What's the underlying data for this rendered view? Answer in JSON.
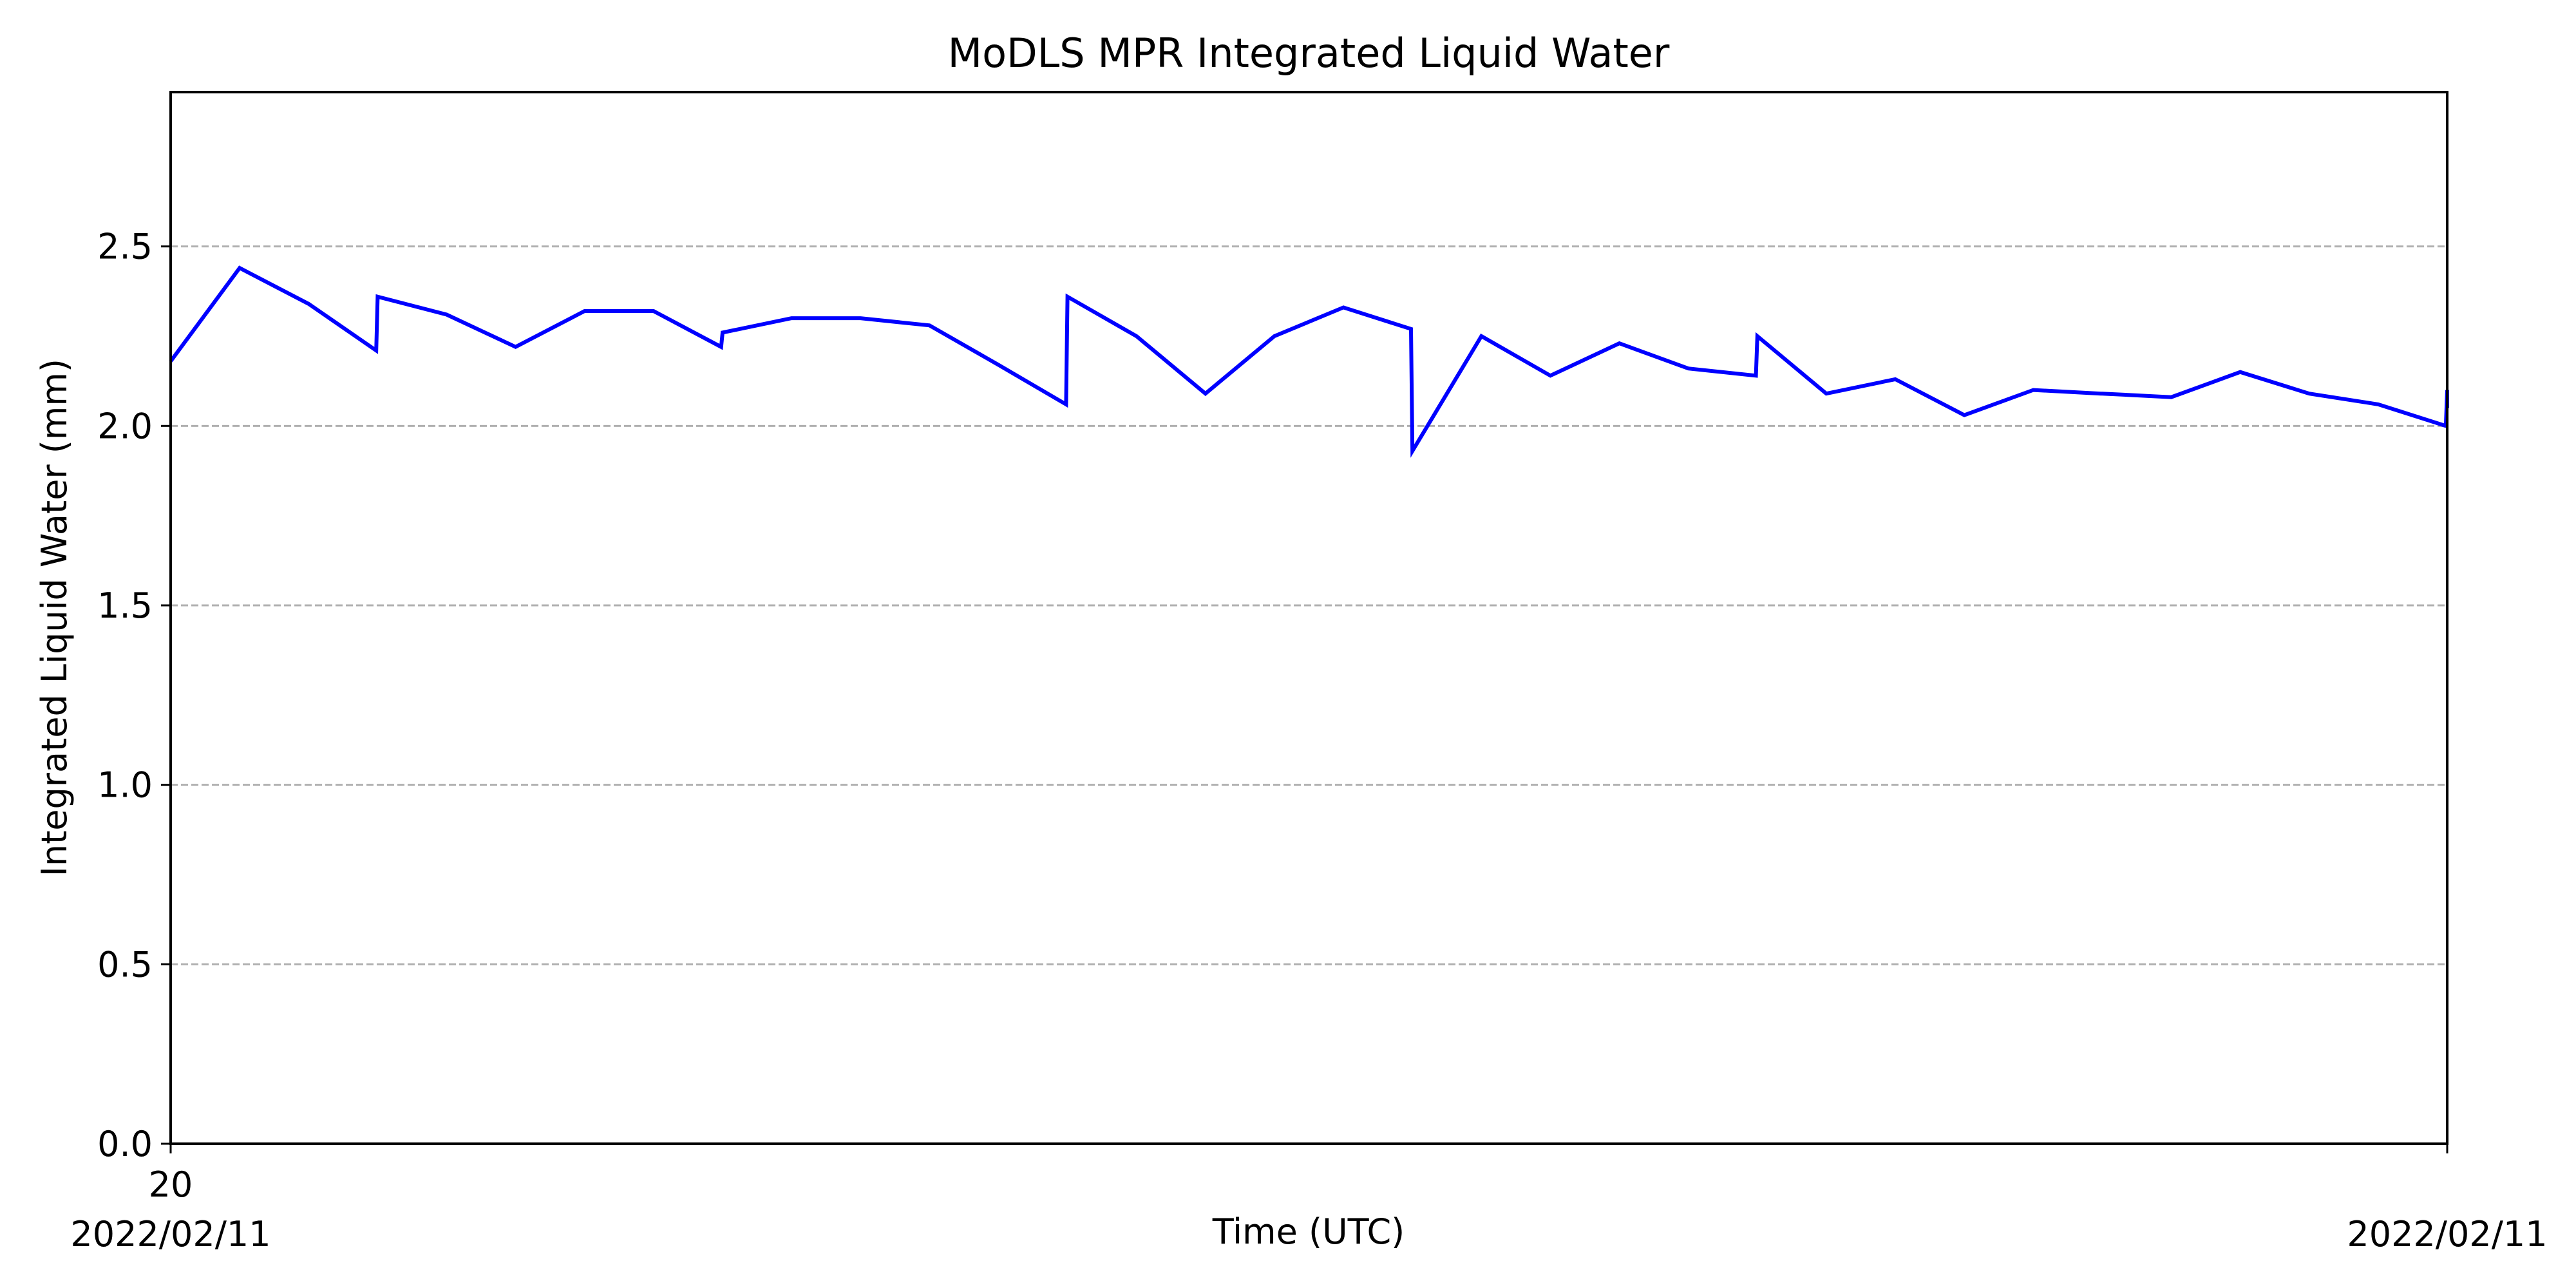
{
  "chart_data": {
    "type": "line",
    "title": "MoDLS MPR Integrated Liquid Water",
    "xlabel": "Time (UTC)",
    "ylabel": "Integrated Liquid Water (mm)",
    "ylim": [
      0,
      2.93
    ],
    "yticks": [
      "0.0",
      "0.5",
      "1.0",
      "1.5",
      "2.0",
      "2.5"
    ],
    "ytick_values": [
      0,
      0.5,
      1.0,
      1.5,
      2.0,
      2.5
    ],
    "xticks": [
      {
        "lines": [
          "20",
          "2022/02/11"
        ],
        "pos": "left"
      },
      {
        "lines": [
          "2022/02/11"
        ],
        "pos": "right"
      }
    ],
    "grid": "horizontal dashed",
    "series": [
      {
        "color": "#0000ff",
        "x": [
          0,
          1,
          2,
          2.98,
          3,
          4,
          5,
          6,
          7,
          7.98,
          8,
          9,
          10,
          11,
          12,
          12.98,
          13,
          14,
          15,
          16,
          17,
          17.98,
          18,
          19,
          20,
          21,
          22,
          22.98,
          23,
          24,
          25,
          26,
          27,
          27.98,
          28,
          29,
          30,
          31,
          32,
          32.98,
          33
        ],
        "values": [
          2.18,
          2.44,
          2.34,
          2.21,
          2.36,
          2.31,
          2.22,
          2.32,
          2.32,
          2.22,
          2.26,
          2.3,
          2.3,
          2.28,
          2.17,
          2.06,
          2.36,
          2.25,
          2.09,
          2.25,
          2.33,
          2.27,
          1.93,
          2.25,
          2.14,
          2.23,
          2.16,
          2.14,
          2.25,
          2.09,
          2.13,
          2.03,
          2.1,
          2.09,
          2.09,
          2.08,
          2.15,
          2.09,
          2.06,
          2.0,
          2.1
        ]
      }
    ],
    "xlim": [
      0,
      33
    ],
    "line_tail": 2.05
  }
}
